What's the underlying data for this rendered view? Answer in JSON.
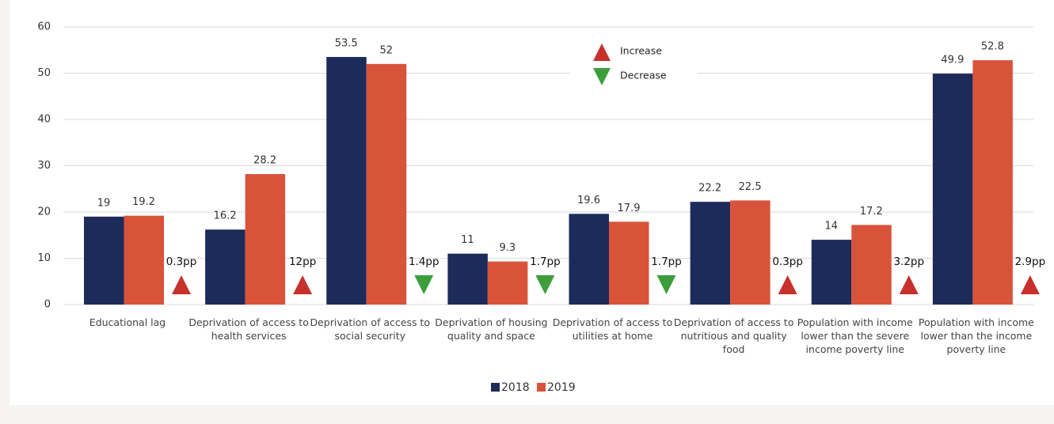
{
  "chart_data": {
    "type": "bar",
    "categories": [
      "Educational lag",
      "Deprivation of access to health services",
      "Deprivation of access to social security",
      "Deprivation of housing quality and space",
      "Deprivation of access to utilities at home",
      "Deprivation of access to nutritious and quality food",
      "Population with income lower than the severe income poverty line",
      "Population with income lower than the income poverty line"
    ],
    "series": [
      {
        "name": "2018",
        "color": "#1c2b5a",
        "values": [
          19,
          16.2,
          53.5,
          11,
          19.6,
          22.2,
          14,
          49.9
        ]
      },
      {
        "name": "2019",
        "color": "#d9533a",
        "values": [
          19.2,
          28.2,
          52,
          9.3,
          17.9,
          22.5,
          17.2,
          52.8
        ]
      }
    ],
    "annotations": [
      {
        "label": "0.3pp",
        "direction": "up"
      },
      {
        "label": "12pp",
        "direction": "up"
      },
      {
        "label": "1.4pp",
        "direction": "down"
      },
      {
        "label": "1.7pp",
        "direction": "down"
      },
      {
        "label": "1.7pp",
        "direction": "down"
      },
      {
        "label": "0.3pp",
        "direction": "up"
      },
      {
        "label": "3.2pp",
        "direction": "up"
      },
      {
        "label": "2.9pp",
        "direction": "up"
      }
    ],
    "marker_legend": [
      {
        "label": "Increase",
        "direction": "up",
        "color": "#c8302c"
      },
      {
        "label": "Decrease",
        "direction": "down",
        "color": "#3b9e3b"
      }
    ],
    "ylim": [
      0,
      60
    ],
    "yticks": [
      0,
      10,
      20,
      30,
      40,
      50,
      60
    ],
    "grid": true,
    "legend": "bottom"
  }
}
